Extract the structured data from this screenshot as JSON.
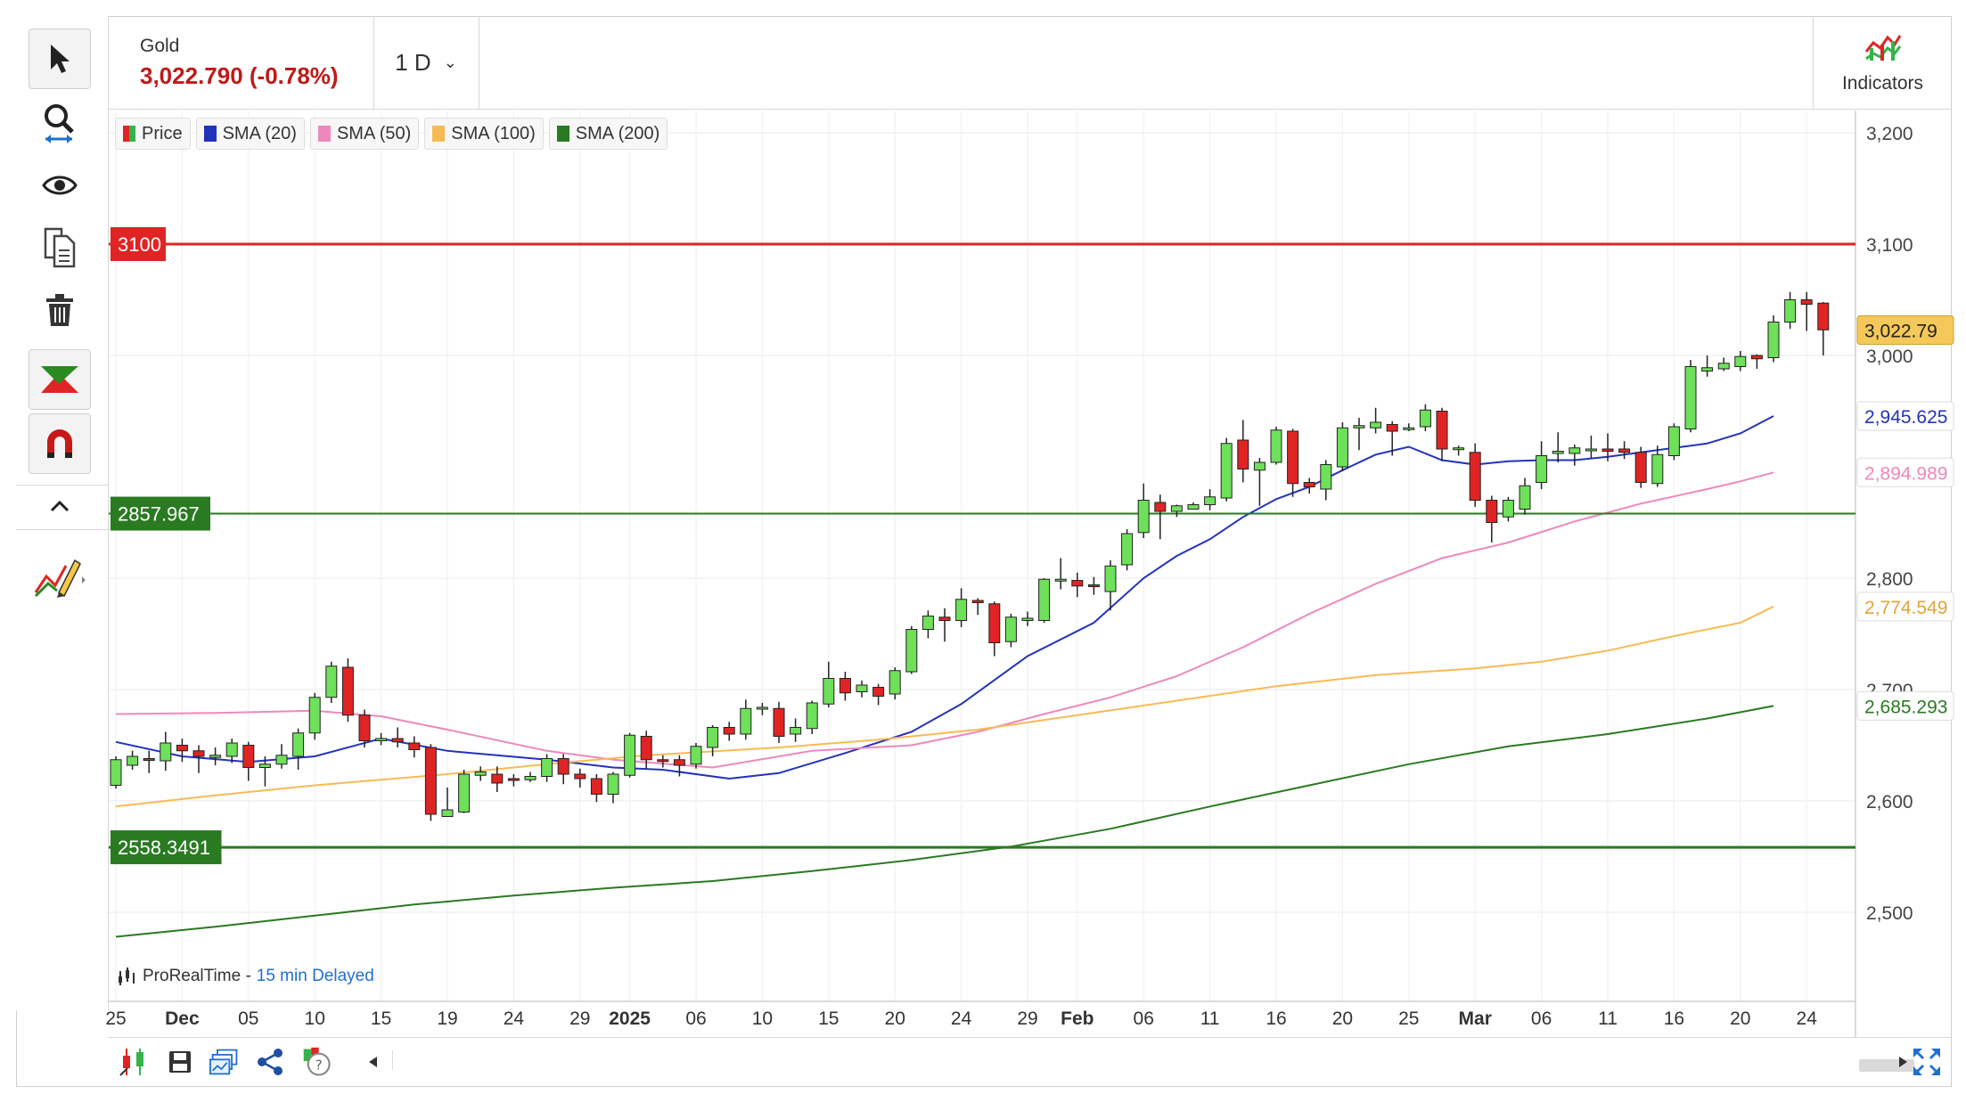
{
  "instrument": {
    "name": "Gold",
    "price_change": "3,022.790 (-0.78%)"
  },
  "timeframe": {
    "label": "1 D"
  },
  "indicators_button": {
    "label": "Indicators"
  },
  "legend": [
    {
      "label": "Price",
      "color": "#35b34a"
    },
    {
      "label": "SMA (20)",
      "color": "#2233bb"
    },
    {
      "label": "SMA (50)",
      "color": "#ee88bb"
    },
    {
      "label": "SMA (100)",
      "color": "#f7bb55"
    },
    {
      "label": "SMA (200)",
      "color": "#2a7a22"
    }
  ],
  "credit": {
    "source": "ProRealTime -",
    "delay": "15 min Delayed"
  },
  "toolbar": {
    "icons": [
      "pointer-icon",
      "zoom-icon",
      "eye-icon",
      "copy-icon",
      "trash-icon",
      "trend-tool-icon",
      "magnet-icon",
      "collapse-icon",
      "drawing-pencil-icon"
    ]
  },
  "bottombar": {
    "icons": [
      "candle-settings-icon",
      "save-icon",
      "layout-icon",
      "share-icon",
      "help-icon",
      "scroll-left-icon",
      "scroll-right-icon",
      "expand-icon"
    ]
  },
  "chart_data": {
    "type": "candlestick",
    "ylim": [
      2420,
      3220
    ],
    "y_ticks": [
      2500,
      2600,
      2700,
      2800,
      3000,
      3100,
      3200
    ],
    "y_tick_labels": [
      "2,500",
      "2,600",
      "2,700",
      "2,800",
      "3,000",
      "3,100",
      "3,200"
    ],
    "x_ticks": [
      {
        "label": "25",
        "index": 0
      },
      {
        "label": "Dec",
        "index": 4,
        "bold": true
      },
      {
        "label": "05",
        "index": 8
      },
      {
        "label": "10",
        "index": 12
      },
      {
        "label": "15",
        "index": 16
      },
      {
        "label": "19",
        "index": 20
      },
      {
        "label": "24",
        "index": 24
      },
      {
        "label": "29",
        "index": 28
      },
      {
        "label": "2025",
        "index": 31,
        "bold": true
      },
      {
        "label": "06",
        "index": 35
      },
      {
        "label": "10",
        "index": 39
      },
      {
        "label": "15",
        "index": 43
      },
      {
        "label": "20",
        "index": 47
      },
      {
        "label": "24",
        "index": 51
      },
      {
        "label": "29",
        "index": 55
      },
      {
        "label": "Feb",
        "index": 58,
        "bold": true
      },
      {
        "label": "06",
        "index": 62
      },
      {
        "label": "11",
        "index": 66
      },
      {
        "label": "16",
        "index": 70
      },
      {
        "label": "20",
        "index": 74
      },
      {
        "label": "25",
        "index": 78
      },
      {
        "label": "Mar",
        "index": 82,
        "bold": true
      },
      {
        "label": "06",
        "index": 86
      },
      {
        "label": "11",
        "index": 90
      },
      {
        "label": "16",
        "index": 94
      },
      {
        "label": "20",
        "index": 98
      },
      {
        "label": "24",
        "index": 102
      }
    ],
    "candles": [
      [
        2614,
        2637,
        2611,
        2640
      ],
      [
        2632,
        2640,
        2628,
        2645
      ],
      [
        2638,
        2637,
        2625,
        2645
      ],
      [
        2636,
        2652,
        2627,
        2662
      ],
      [
        2650,
        2645,
        2635,
        2656
      ],
      [
        2645,
        2640,
        2625,
        2650
      ],
      [
        2639,
        2641,
        2632,
        2648
      ],
      [
        2640,
        2652,
        2634,
        2656
      ],
      [
        2650,
        2630,
        2618,
        2653
      ],
      [
        2630,
        2633,
        2613,
        2640
      ],
      [
        2633,
        2641,
        2629,
        2651
      ],
      [
        2640,
        2661,
        2628,
        2665
      ],
      [
        2661,
        2693,
        2655,
        2697
      ],
      [
        2693,
        2721,
        2688,
        2725
      ],
      [
        2720,
        2677,
        2671,
        2728
      ],
      [
        2677,
        2654,
        2648,
        2682
      ],
      [
        2654,
        2656,
        2650,
        2661
      ],
      [
        2656,
        2653,
        2648,
        2666
      ],
      [
        2652,
        2646,
        2639,
        2658
      ],
      [
        2648,
        2588,
        2582,
        2651
      ],
      [
        2586,
        2592,
        2587,
        2612
      ],
      [
        2590,
        2624,
        2589,
        2628
      ],
      [
        2623,
        2626,
        2618,
        2631
      ],
      [
        2624,
        2616,
        2608,
        2631
      ],
      [
        2620,
        2619,
        2613,
        2624
      ],
      [
        2619,
        2622,
        2617,
        2626
      ],
      [
        2622,
        2638,
        2617,
        2642
      ],
      [
        2638,
        2624,
        2615,
        2642
      ],
      [
        2624,
        2620,
        2612,
        2629
      ],
      [
        2620,
        2606,
        2599,
        2624
      ],
      [
        2606,
        2624,
        2598,
        2626
      ],
      [
        2623,
        2659,
        2621,
        2661
      ],
      [
        2658,
        2637,
        2629,
        2663
      ],
      [
        2637,
        2636,
        2630,
        2641
      ],
      [
        2637,
        2632,
        2622,
        2641
      ],
      [
        2633,
        2649,
        2629,
        2652
      ],
      [
        2648,
        2666,
        2640,
        2668
      ],
      [
        2666,
        2660,
        2654,
        2671
      ],
      [
        2660,
        2683,
        2655,
        2691
      ],
      [
        2683,
        2684,
        2677,
        2688
      ],
      [
        2683,
        2658,
        2652,
        2689
      ],
      [
        2660,
        2666,
        2653,
        2674
      ],
      [
        2665,
        2688,
        2660,
        2690
      ],
      [
        2687,
        2710,
        2684,
        2725
      ],
      [
        2710,
        2697,
        2690,
        2716
      ],
      [
        2698,
        2704,
        2693,
        2708
      ],
      [
        2702,
        2694,
        2686,
        2705
      ],
      [
        2696,
        2717,
        2691,
        2720
      ],
      [
        2716,
        2754,
        2714,
        2757
      ],
      [
        2754,
        2766,
        2746,
        2771
      ],
      [
        2765,
        2762,
        2743,
        2773
      ],
      [
        2762,
        2781,
        2756,
        2791
      ],
      [
        2780,
        2778,
        2767,
        2782
      ],
      [
        2777,
        2742,
        2730,
        2779
      ],
      [
        2743,
        2765,
        2738,
        2768
      ],
      [
        2762,
        2764,
        2757,
        2770
      ],
      [
        2762,
        2799,
        2760,
        2800
      ],
      [
        2798,
        2799,
        2790,
        2818
      ],
      [
        2798,
        2793,
        2783,
        2805
      ],
      [
        2794,
        2793,
        2785,
        2801
      ],
      [
        2788,
        2811,
        2771,
        2816
      ],
      [
        2812,
        2840,
        2807,
        2844
      ],
      [
        2841,
        2870,
        2836,
        2885
      ],
      [
        2868,
        2860,
        2835,
        2875
      ],
      [
        2860,
        2865,
        2855,
        2866
      ],
      [
        2862,
        2866,
        2862,
        2868
      ],
      [
        2866,
        2873,
        2861,
        2880
      ],
      [
        2872,
        2921,
        2869,
        2926
      ],
      [
        2924,
        2898,
        2886,
        2942
      ],
      [
        2897,
        2904,
        2865,
        2908
      ],
      [
        2904,
        2933,
        2902,
        2936
      ],
      [
        2932,
        2885,
        2873,
        2934
      ],
      [
        2886,
        2882,
        2876,
        2890
      ],
      [
        2880,
        2902,
        2870,
        2906
      ],
      [
        2900,
        2935,
        2896,
        2940
      ],
      [
        2935,
        2937,
        2915,
        2944
      ],
      [
        2935,
        2940,
        2930,
        2953
      ],
      [
        2938,
        2932,
        2910,
        2941
      ],
      [
        2934,
        2935,
        2932,
        2939
      ],
      [
        2936,
        2951,
        2932,
        2956
      ],
      [
        2950,
        2916,
        2905,
        2953
      ],
      [
        2916,
        2917,
        2910,
        2919
      ],
      [
        2913,
        2870,
        2864,
        2921
      ],
      [
        2870,
        2850,
        2832,
        2874
      ],
      [
        2855,
        2870,
        2851,
        2873
      ],
      [
        2862,
        2883,
        2857,
        2890
      ],
      [
        2886,
        2910,
        2880,
        2923
      ],
      [
        2912,
        2914,
        2904,
        2931
      ],
      [
        2912,
        2917,
        2901,
        2920
      ],
      [
        2916,
        2916,
        2908,
        2928
      ],
      [
        2916,
        2914,
        2905,
        2930
      ],
      [
        2916,
        2913,
        2907,
        2923
      ],
      [
        2913,
        2886,
        2881,
        2918
      ],
      [
        2885,
        2911,
        2882,
        2919
      ],
      [
        2910,
        2936,
        2906,
        2939
      ],
      [
        2934,
        2990,
        2931,
        2996
      ],
      [
        2986,
        2989,
        2981,
        3000
      ],
      [
        2988,
        2993,
        2986,
        2998
      ],
      [
        2990,
        2999,
        2986,
        3004
      ],
      [
        3000,
        2997,
        2988,
        3001
      ],
      [
        2998,
        3030,
        2994,
        3036
      ],
      [
        3030,
        3050,
        3024,
        3057
      ],
      [
        3050,
        3046,
        3022,
        3057
      ],
      [
        3047,
        3023,
        3000,
        3048
      ]
    ],
    "series": [
      {
        "name": "SMA (20)",
        "color": "#2233bb",
        "points": [
          [
            0,
            2653
          ],
          [
            4,
            2640
          ],
          [
            8,
            2635
          ],
          [
            12,
            2640
          ],
          [
            16,
            2656
          ],
          [
            20,
            2645
          ],
          [
            26,
            2637
          ],
          [
            30,
            2630
          ],
          [
            33,
            2628
          ],
          [
            37,
            2620
          ],
          [
            40,
            2625
          ],
          [
            44,
            2643
          ],
          [
            48,
            2662
          ],
          [
            51,
            2687
          ],
          [
            55,
            2730
          ],
          [
            59,
            2760
          ],
          [
            62,
            2800
          ],
          [
            64,
            2820
          ],
          [
            66,
            2835
          ],
          [
            68,
            2855
          ],
          [
            70,
            2871
          ],
          [
            72,
            2882
          ],
          [
            74,
            2897
          ],
          [
            76,
            2911
          ],
          [
            78,
            2918
          ],
          [
            80,
            2906
          ],
          [
            82,
            2902
          ],
          [
            84,
            2905
          ],
          [
            86,
            2906
          ],
          [
            88,
            2906
          ],
          [
            90,
            2909
          ],
          [
            92,
            2913
          ],
          [
            94,
            2917
          ],
          [
            96,
            2921
          ],
          [
            98,
            2930
          ],
          [
            100,
            2945.625
          ]
        ]
      },
      {
        "name": "SMA (50)",
        "color": "#ee88bb",
        "points": [
          [
            0,
            2678
          ],
          [
            6,
            2679
          ],
          [
            12,
            2681
          ],
          [
            16,
            2676
          ],
          [
            20,
            2664
          ],
          [
            26,
            2645
          ],
          [
            30,
            2637
          ],
          [
            36,
            2630
          ],
          [
            42,
            2645
          ],
          [
            48,
            2650
          ],
          [
            52,
            2662
          ],
          [
            56,
            2678
          ],
          [
            60,
            2693
          ],
          [
            64,
            2712
          ],
          [
            68,
            2738
          ],
          [
            72,
            2768
          ],
          [
            76,
            2795
          ],
          [
            80,
            2818
          ],
          [
            84,
            2832
          ],
          [
            88,
            2851
          ],
          [
            92,
            2867
          ],
          [
            96,
            2880
          ],
          [
            98,
            2887
          ],
          [
            100,
            2894.989
          ]
        ]
      },
      {
        "name": "SMA (100)",
        "color": "#f7bb55",
        "points": [
          [
            0,
            2595
          ],
          [
            6,
            2605
          ],
          [
            12,
            2614
          ],
          [
            20,
            2624
          ],
          [
            26,
            2633
          ],
          [
            32,
            2641
          ],
          [
            40,
            2648
          ],
          [
            46,
            2655
          ],
          [
            52,
            2664
          ],
          [
            58,
            2677
          ],
          [
            64,
            2690
          ],
          [
            70,
            2703
          ],
          [
            76,
            2713
          ],
          [
            82,
            2719
          ],
          [
            86,
            2725
          ],
          [
            90,
            2735
          ],
          [
            94,
            2748
          ],
          [
            98,
            2760
          ],
          [
            100,
            2774.549
          ]
        ]
      },
      {
        "name": "SMA (200)",
        "color": "#2a7a22",
        "points": [
          [
            0,
            2478
          ],
          [
            6,
            2487
          ],
          [
            12,
            2497
          ],
          [
            18,
            2507
          ],
          [
            24,
            2515
          ],
          [
            30,
            2522
          ],
          [
            36,
            2528
          ],
          [
            42,
            2537
          ],
          [
            48,
            2547
          ],
          [
            54,
            2559
          ],
          [
            60,
            2575
          ],
          [
            66,
            2595
          ],
          [
            72,
            2614
          ],
          [
            78,
            2633
          ],
          [
            84,
            2649
          ],
          [
            90,
            2660
          ],
          [
            96,
            2674
          ],
          [
            100,
            2685.293
          ]
        ]
      }
    ],
    "hlines": [
      {
        "label": "3100",
        "value": 3100,
        "color": "#e02424"
      },
      {
        "label": "2857.967",
        "value": 2857.967,
        "color": "#2a7a22"
      },
      {
        "label": "2558.3491",
        "value": 2558.3491,
        "color": "#2a7a22"
      }
    ],
    "right_labels": [
      {
        "label": "3,022.79",
        "value": 3022.79,
        "bg": "#f5c85a",
        "fg": "#222",
        "border": "#d0a030"
      },
      {
        "label": "2,945.625",
        "value": 2945.625,
        "bg": "#ffffff",
        "fg": "#2233bb",
        "border": "#dddddd"
      },
      {
        "label": "2,894.989",
        "value": 2894.989,
        "bg": "#ffffff",
        "fg": "#ee88bb",
        "border": "#dddddd"
      },
      {
        "label": "2,774.549",
        "value": 2774.549,
        "bg": "#ffffff",
        "fg": "#e0a43a",
        "border": "#dddddd"
      },
      {
        "label": "2,685.293",
        "value": 2685.293,
        "bg": "#ffffff",
        "fg": "#2a7a22",
        "border": "#dddddd"
      }
    ],
    "colors": {
      "up": "#6ee05a",
      "down": "#e02424"
    }
  }
}
